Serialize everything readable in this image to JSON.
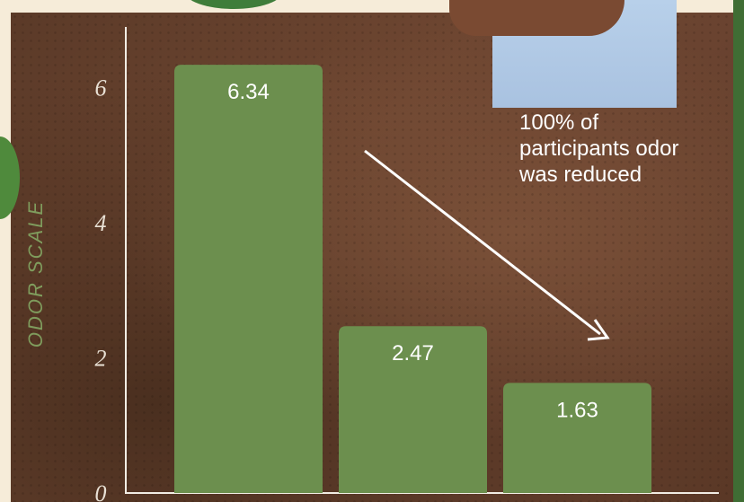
{
  "chart_data": {
    "type": "bar",
    "title": "",
    "xlabel": "",
    "ylabel": "ODOR SCALE",
    "ylim": [
      0,
      6.9
    ],
    "yticks": [
      0,
      2,
      4,
      6
    ],
    "ytick_labels": [
      "0",
      "2",
      "4",
      "6"
    ],
    "categories": [
      "",
      "",
      ""
    ],
    "values": [
      6.34,
      2.47,
      1.63
    ],
    "data_labels": [
      "6.34",
      "2.47",
      "1.63"
    ],
    "bar_color": "#6c8f4e",
    "grid": false,
    "annotation": "100% of participants odor was reduced"
  }
}
